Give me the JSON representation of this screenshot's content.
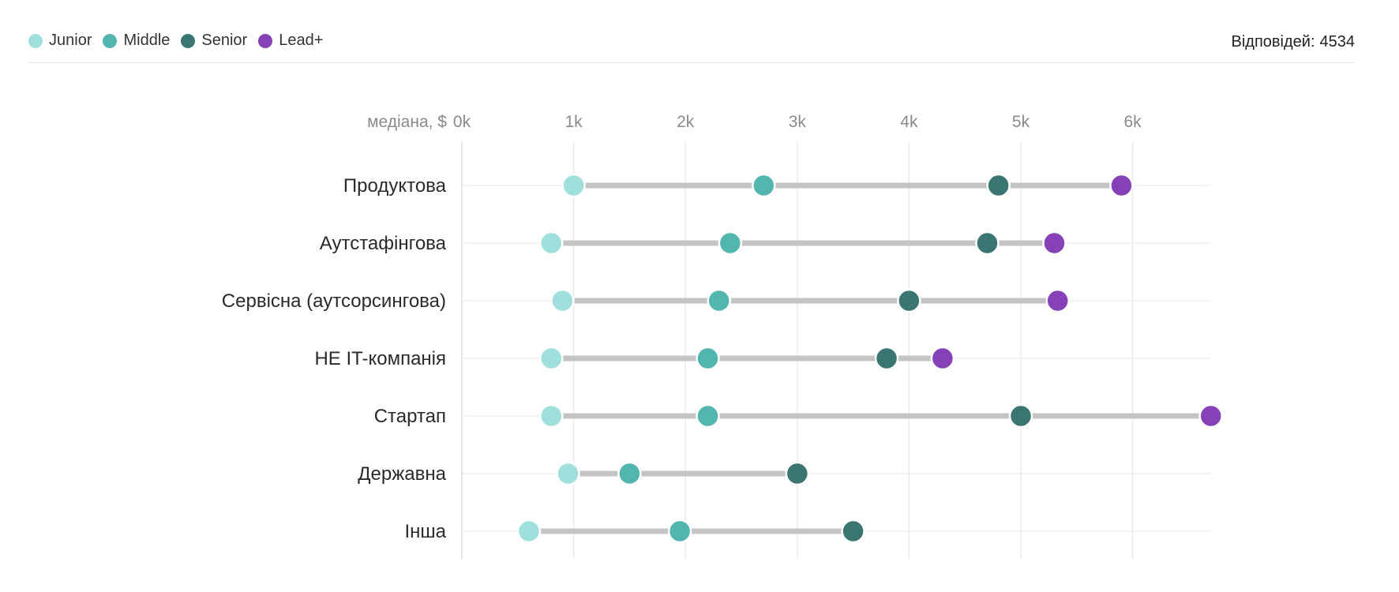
{
  "legend": {
    "items": [
      {
        "label": "Junior",
        "color": "#9fe0dc"
      },
      {
        "label": "Middle",
        "color": "#52b5ae"
      },
      {
        "label": "Senior",
        "color": "#3b7571"
      },
      {
        "label": "Lead+",
        "color": "#8541b5"
      }
    ]
  },
  "responses": {
    "label": "Відповідей:",
    "count": "4534"
  },
  "chart_data": {
    "type": "dumbbell",
    "xlabel": "медіана, $",
    "xlim": [
      0,
      6.7
    ],
    "ticks": [
      {
        "value": 0,
        "label": "0k"
      },
      {
        "value": 1,
        "label": "1k"
      },
      {
        "value": 2,
        "label": "2k"
      },
      {
        "value": 3,
        "label": "3k"
      },
      {
        "value": 4,
        "label": "4k"
      },
      {
        "value": 5,
        "label": "5k"
      },
      {
        "value": 6,
        "label": "6k"
      }
    ],
    "categories": [
      "Продуктова",
      "Аутстафінгова",
      "Сервісна (аутсорсингова)",
      "НЕ IT-компанія",
      "Стартап",
      "Державна",
      "Інша"
    ],
    "series": [
      {
        "name": "Junior",
        "color": "#9fe0dc",
        "values": [
          1.0,
          0.8,
          0.9,
          0.8,
          0.8,
          0.95,
          0.6
        ]
      },
      {
        "name": "Middle",
        "color": "#52b5ae",
        "values": [
          2.7,
          2.4,
          2.3,
          2.2,
          2.2,
          1.5,
          1.95
        ]
      },
      {
        "name": "Senior",
        "color": "#3b7571",
        "values": [
          4.8,
          4.7,
          4.0,
          3.8,
          5.0,
          3.0,
          3.5
        ]
      },
      {
        "name": "Lead+",
        "color": "#8541b5",
        "values": [
          5.9,
          5.3,
          5.33,
          4.3,
          6.7,
          null,
          null
        ]
      }
    ]
  }
}
